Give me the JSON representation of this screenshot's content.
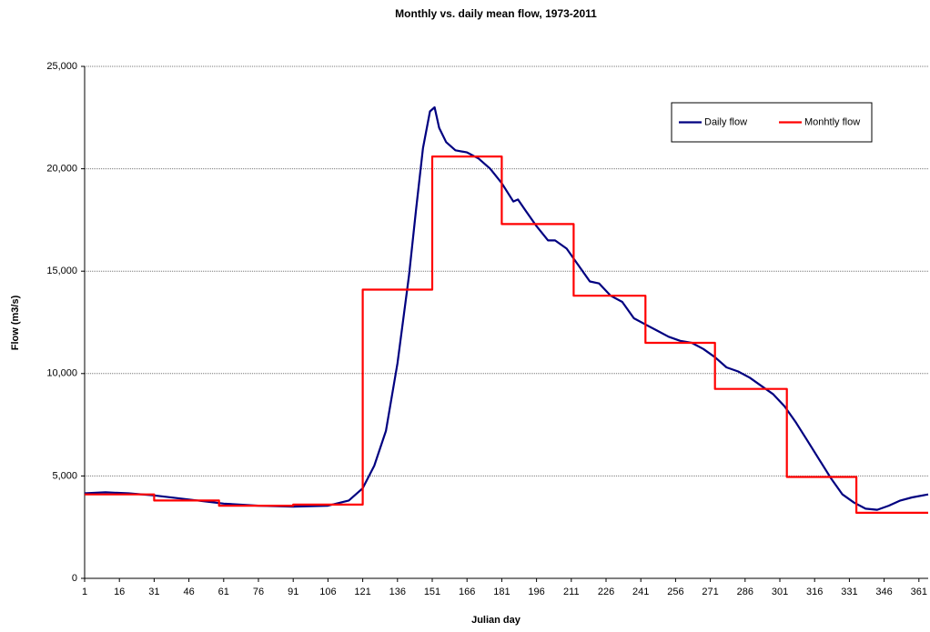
{
  "chart_data": {
    "type": "line",
    "title": "Monthly vs. daily mean flow, 1973-2011",
    "xlabel": "Julian day",
    "ylabel": "Flow (m3/s)",
    "xlim": [
      1,
      365
    ],
    "ylim": [
      0,
      25000
    ],
    "xticks": [
      1,
      16,
      31,
      46,
      61,
      76,
      91,
      106,
      121,
      136,
      151,
      166,
      181,
      196,
      211,
      226,
      241,
      256,
      271,
      286,
      301,
      316,
      331,
      346,
      361
    ],
    "yticks": [
      0,
      {
        "value": 5000,
        "label": "5,000"
      },
      {
        "value": 10000,
        "label": "10,000"
      },
      {
        "value": 15000,
        "label": "15,000"
      },
      {
        "value": 20000,
        "label": "20,000"
      },
      {
        "value": 25000,
        "label": "25,000"
      }
    ],
    "grid": true,
    "legend": "upper right",
    "series": [
      {
        "name": "Daily flow",
        "color": "#000080",
        "x": [
          1,
          10,
          20,
          31,
          46,
          61,
          76,
          91,
          106,
          115,
          121,
          126,
          131,
          136,
          141,
          144,
          147,
          150,
          152,
          154,
          157,
          161,
          166,
          171,
          176,
          181,
          186,
          188,
          191,
          196,
          201,
          204,
          209,
          214,
          219,
          223,
          228,
          233,
          238,
          243,
          248,
          253,
          258,
          263,
          268,
          273,
          278,
          283,
          288,
          293,
          298,
          303,
          308,
          313,
          318,
          323,
          328,
          333,
          338,
          343,
          348,
          353,
          358,
          365
        ],
        "values": [
          4150,
          4200,
          4150,
          4050,
          3850,
          3650,
          3550,
          3500,
          3550,
          3800,
          4400,
          5500,
          7200,
          10500,
          14800,
          18000,
          21000,
          22800,
          23000,
          22000,
          21300,
          20900,
          20800,
          20500,
          20000,
          19300,
          18400,
          18500,
          18000,
          17200,
          16500,
          16500,
          16100,
          15300,
          14500,
          14400,
          13800,
          13500,
          12700,
          12400,
          12100,
          11800,
          11600,
          11500,
          11200,
          10800,
          10300,
          10100,
          9800,
          9400,
          9000,
          8400,
          7600,
          6700,
          5800,
          4900,
          4100,
          3700,
          3400,
          3350,
          3550,
          3800,
          3950,
          4100
        ]
      },
      {
        "name": "Monhtly flow",
        "color": "#ff0000",
        "x": [
          1,
          31,
          31,
          59,
          59,
          91,
          91,
          121,
          121,
          151,
          151,
          181,
          181,
          212,
          212,
          243,
          243,
          273,
          273,
          304,
          304,
          334,
          334,
          365
        ],
        "values": [
          4100,
          4100,
          3800,
          3800,
          3550,
          3550,
          3600,
          3600,
          14100,
          14100,
          20600,
          20600,
          17300,
          17300,
          13800,
          13800,
          11500,
          11500,
          9250,
          9250,
          4950,
          4950,
          3200,
          3200
        ]
      }
    ]
  }
}
